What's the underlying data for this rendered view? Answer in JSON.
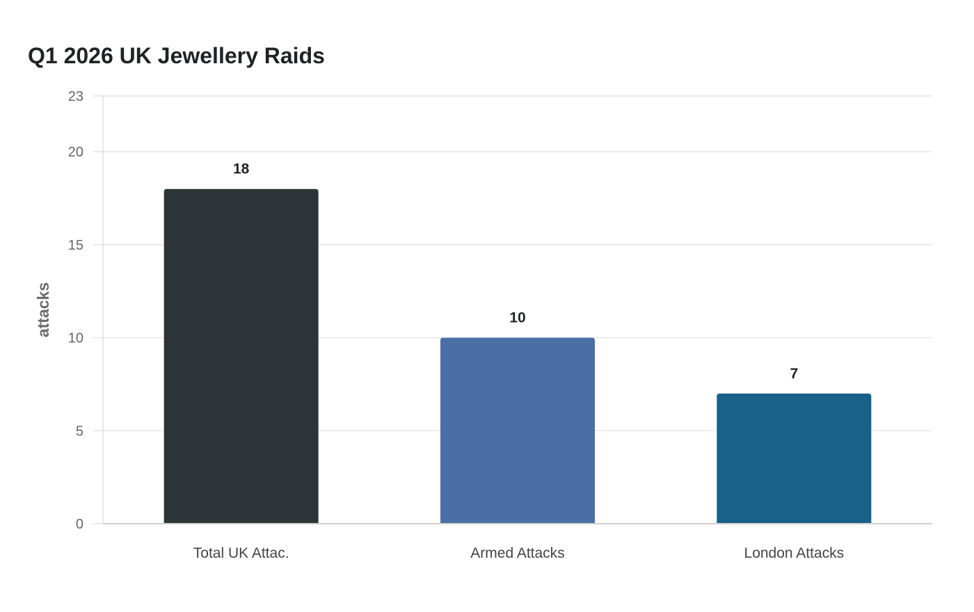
{
  "chart_data": {
    "type": "bar",
    "title": "Q1 2026 UK Jewellery Raids",
    "xlabel": "",
    "ylabel": "attacks",
    "categories": [
      "Total UK Attac.",
      "Armed Attacks",
      "London Attacks"
    ],
    "values": [
      18,
      10,
      7
    ],
    "colors": [
      "#2e3538",
      "#4a6fa4",
      "#186189"
    ],
    "yticks": [
      0,
      5,
      10,
      15,
      20,
      23
    ],
    "ylim": [
      0,
      23
    ],
    "grid": true,
    "legend": "none"
  }
}
